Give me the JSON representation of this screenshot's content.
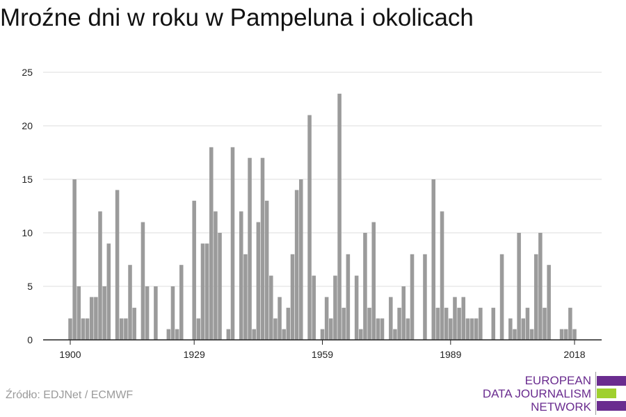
{
  "title": "Mroźne dni w roku w Pampeluna i okolicach",
  "source": "Źródło: EDJNet / ECMWF",
  "logo": {
    "line1": "EUROPEAN",
    "line2": "DATA JOURNALISM",
    "line3": "NETWORK",
    "colors": [
      "#6a2c8f",
      "#9fd02e",
      "#6a2c8f"
    ]
  },
  "chart_data": {
    "type": "bar",
    "title": "Mroźne dni w roku w Pampeluna i okolicach",
    "xlabel": "",
    "ylabel": "",
    "x_ticks": [
      "1900",
      "1929",
      "1959",
      "1989",
      "2018"
    ],
    "y_ticks": [
      0,
      5,
      10,
      15,
      20,
      25
    ],
    "ylim": [
      0,
      25
    ],
    "grid": true,
    "bar_color": "#9b9b9b",
    "x": [
      1900,
      1901,
      1902,
      1903,
      1904,
      1905,
      1906,
      1907,
      1908,
      1909,
      1910,
      1911,
      1912,
      1913,
      1914,
      1915,
      1916,
      1917,
      1918,
      1919,
      1920,
      1921,
      1922,
      1923,
      1924,
      1925,
      1926,
      1927,
      1928,
      1929,
      1930,
      1931,
      1932,
      1933,
      1934,
      1935,
      1936,
      1937,
      1938,
      1939,
      1940,
      1941,
      1942,
      1943,
      1944,
      1945,
      1946,
      1947,
      1948,
      1949,
      1950,
      1951,
      1952,
      1953,
      1954,
      1955,
      1956,
      1957,
      1958,
      1959,
      1960,
      1961,
      1962,
      1963,
      1964,
      1965,
      1966,
      1967,
      1968,
      1969,
      1970,
      1971,
      1972,
      1973,
      1974,
      1975,
      1976,
      1977,
      1978,
      1979,
      1980,
      1981,
      1982,
      1983,
      1984,
      1985,
      1986,
      1987,
      1988,
      1989,
      1990,
      1991,
      1992,
      1993,
      1994,
      1995,
      1996,
      1997,
      1998,
      1999,
      2000,
      2001,
      2002,
      2003,
      2004,
      2005,
      2006,
      2007,
      2008,
      2009,
      2010,
      2011,
      2012,
      2013,
      2014,
      2015,
      2016,
      2017,
      2018
    ],
    "values": [
      2,
      15,
      5,
      2,
      2,
      4,
      4,
      12,
      5,
      9,
      0,
      14,
      2,
      2,
      7,
      3,
      0,
      11,
      5,
      0,
      5,
      0,
      0,
      1,
      5,
      1,
      7,
      0,
      0,
      13,
      2,
      9,
      9,
      18,
      12,
      10,
      0,
      1,
      18,
      0,
      12,
      8,
      17,
      1,
      11,
      17,
      13,
      6,
      2,
      4,
      1,
      3,
      8,
      14,
      15,
      0,
      21,
      6,
      0,
      1,
      4,
      2,
      6,
      23,
      3,
      8,
      0,
      6,
      1,
      10,
      3,
      11,
      2,
      2,
      0,
      4,
      1,
      3,
      5,
      2,
      8,
      0,
      0,
      8,
      0,
      15,
      3,
      12,
      3,
      2,
      4,
      3,
      4,
      2,
      2,
      2,
      3,
      0,
      0,
      3,
      0,
      8,
      0,
      2,
      1,
      10,
      2,
      3,
      1,
      8,
      10,
      3,
      7,
      0,
      0,
      1,
      1,
      3,
      1
    ]
  }
}
